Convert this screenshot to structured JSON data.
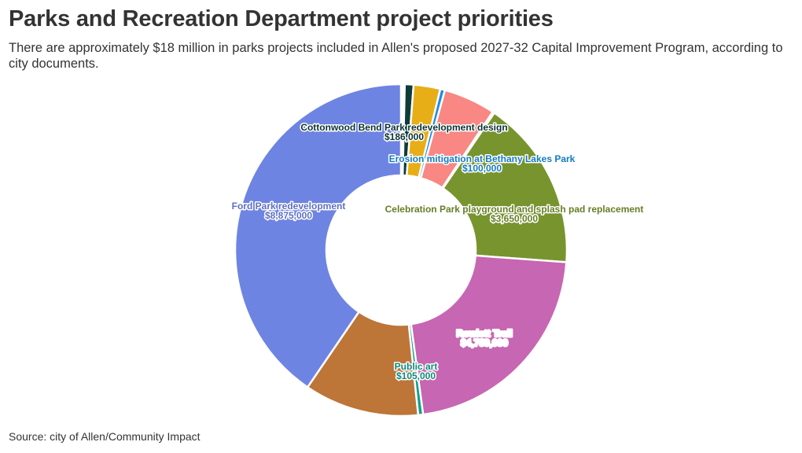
{
  "header": {
    "title": "Parks and Recreation Department project priorities",
    "subtitle": "There are approximately $18 million in parks projects included in Allen's proposed 2027-32 Capital Improvement Program, according to city documents."
  },
  "footer": {
    "source": "Source: city of Allen/Community Impact"
  },
  "chart_data": {
    "type": "pie",
    "donut": true,
    "slices": [
      {
        "name": "",
        "value": 40000,
        "color": "#1f9e5b",
        "label": "",
        "value_label": ""
      },
      {
        "name": "",
        "value": 40000,
        "color": "#bcd9c8",
        "label": "",
        "value_label": ""
      },
      {
        "name": "Cottonwood Bend Park redevelopment design",
        "value": 186000,
        "color": "#0c3b3a",
        "label": "Cottonwood Bend Park redevelopment design",
        "value_label": "$186,000"
      },
      {
        "name": "",
        "value": 570000,
        "color": "#e8ae17",
        "label": "",
        "value_label": ""
      },
      {
        "name": "Erosion mitigation at Bethany Lakes Park",
        "value": 100000,
        "color": "#1a8fe3",
        "label": "Erosion mitigation at Bethany Lakes Park",
        "value_label": "$100,000"
      },
      {
        "name": "",
        "value": 1110000,
        "color": "#f98783",
        "label": "",
        "value_label": ""
      },
      {
        "name": "",
        "value": 40000,
        "color": "#2a7c8a",
        "label": "",
        "value_label": ""
      },
      {
        "name": "Celebration Park playground and splash pad replacement",
        "value": 3650000,
        "color": "#78942e",
        "label": "Celebration Park playground and splash pad replacement",
        "value_label": "$3,650,000"
      },
      {
        "name": "Rowlett Trail",
        "value": 4759000,
        "color": "#c766b2",
        "label": "Rowlett Trail",
        "value_label": "$4,759,000"
      },
      {
        "name": "Public art",
        "value": 105000,
        "color": "#14a08e",
        "label": "Public art",
        "value_label": "$105,000"
      },
      {
        "name": "",
        "value": 2450000,
        "color": "#bd7538",
        "label": "",
        "value_label": ""
      },
      {
        "name": "Ford Park redevelopment",
        "value": 8875000,
        "color": "#6e84e2",
        "label": "Ford Park redevelopment",
        "value_label": "$8,875,000"
      }
    ]
  }
}
